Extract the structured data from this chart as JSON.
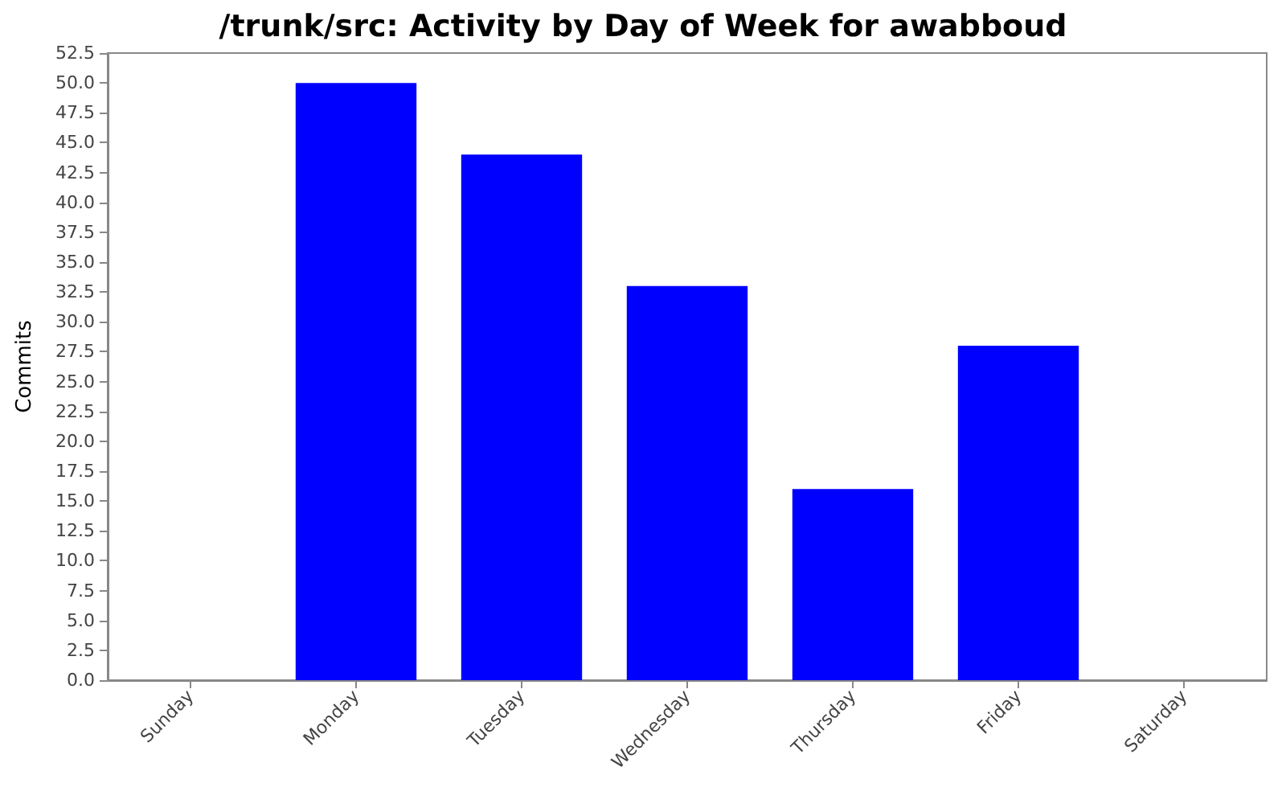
{
  "chart_data": {
    "type": "bar",
    "title": "/trunk/src: Activity by Day of Week for awabboud",
    "ylabel": "Commits",
    "categories": [
      "Sunday",
      "Monday",
      "Tuesday",
      "Wednesday",
      "Thursday",
      "Friday",
      "Saturday"
    ],
    "values": [
      0,
      50,
      44,
      33,
      16,
      28,
      0
    ],
    "color": "#0000ff",
    "ylim": [
      0,
      52.5
    ],
    "yticks": [
      {
        "value": 0,
        "label": "0.0"
      },
      2.5,
      {
        "value": 5,
        "label": "5.0"
      },
      7.5,
      {
        "value": 10,
        "label": "10.0"
      },
      12.5,
      {
        "value": 15,
        "label": "15.0"
      },
      17.5,
      {
        "value": 20,
        "label": "20.0"
      },
      22.5,
      {
        "value": 25,
        "label": "25.0"
      },
      27.5,
      {
        "value": 30,
        "label": "30.0"
      },
      32.5,
      {
        "value": 35,
        "label": "35.0"
      },
      37.5,
      {
        "value": 40,
        "label": "40.0"
      },
      42.5,
      {
        "value": 45,
        "label": "45.0"
      },
      47.5,
      {
        "value": 50,
        "label": "50.0"
      },
      52.5
    ],
    "grid": false
  }
}
